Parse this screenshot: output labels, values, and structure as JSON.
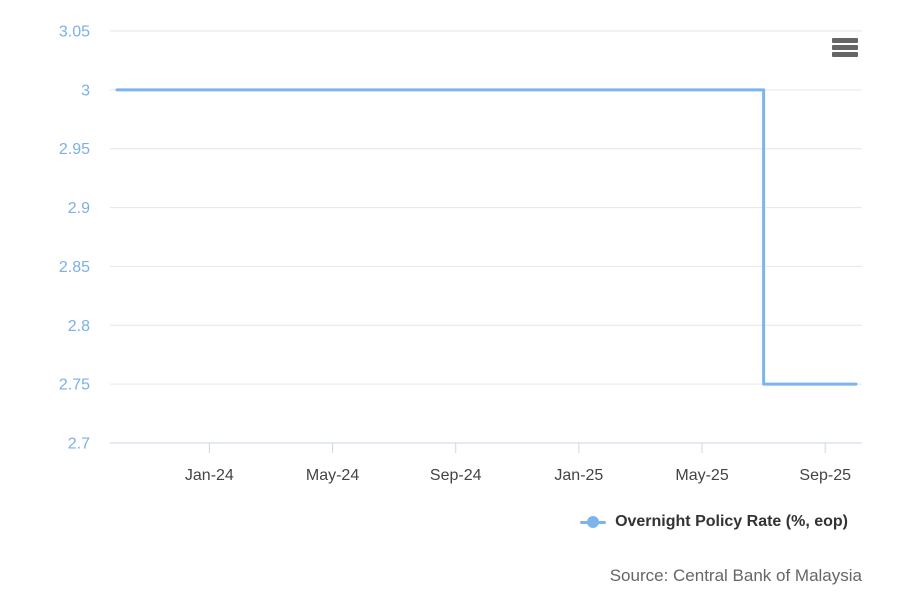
{
  "legend": {
    "label": "Overnight Policy Rate (%, eop)"
  },
  "source": {
    "text": "Source: Central Bank of Malaysia"
  },
  "chart_data": {
    "type": "line",
    "title": "",
    "xlabel": "",
    "ylabel": "",
    "categories": [
      "Oct-23",
      "Nov-23",
      "Dec-23",
      "Jan-24",
      "Feb-24",
      "Mar-24",
      "Apr-24",
      "May-24",
      "Jun-24",
      "Jul-24",
      "Aug-24",
      "Sep-24",
      "Oct-24",
      "Nov-24",
      "Dec-24",
      "Jan-25",
      "Feb-25",
      "Mar-25",
      "Apr-25",
      "May-25",
      "Jun-25",
      "Jul-25",
      "Aug-25",
      "Sep-25",
      "Oct-25"
    ],
    "series": [
      {
        "name": "Overnight Policy Rate (%, eop)",
        "values": [
          3.0,
          3.0,
          3.0,
          3.0,
          3.0,
          3.0,
          3.0,
          3.0,
          3.0,
          3.0,
          3.0,
          3.0,
          3.0,
          3.0,
          3.0,
          3.0,
          3.0,
          3.0,
          3.0,
          3.0,
          3.0,
          2.75,
          2.75,
          2.75,
          2.75
        ]
      }
    ],
    "step": true,
    "grid": true,
    "markers": false,
    "legend_position": "bottom-right",
    "ylim": [
      2.7,
      3.05
    ],
    "yticks": [
      3.05,
      3.0,
      2.95,
      2.9,
      2.85,
      2.8,
      2.75,
      2.7
    ],
    "ytick_labels": [
      "3.05",
      "3",
      "2.95",
      "2.9",
      "2.85",
      "2.8",
      "2.75",
      "2.7"
    ],
    "xticks": [
      "Jan-24",
      "May-24",
      "Sep-24",
      "Jan-25",
      "May-25",
      "Sep-25"
    ],
    "colors": {
      "line": "#7cb5ec",
      "grid": "#e6e6e6",
      "axis": "#ccd6eb",
      "y_label": "#7cb0e8",
      "x_label": "#444444",
      "legend_text": "#333333",
      "source_text": "#666666",
      "menu_icon": "#666666",
      "background": "#ffffff"
    }
  }
}
